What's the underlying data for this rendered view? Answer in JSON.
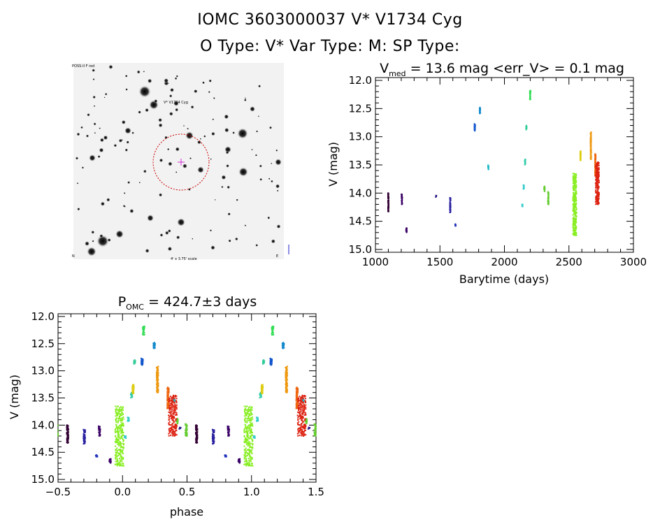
{
  "header": {
    "title_line1": "IOMC 3603000037    V* V1734 Cyg",
    "title_line2": "O Type: V*   Var Type: M:   SP Type:"
  },
  "finder_chart": {
    "label_top_left": "POSS-II F red",
    "label_target": "V* V1734 Cyg",
    "label_bottom_left": "N",
    "label_bottom_center": "4' x 3.75' scale",
    "label_bottom_right": "E",
    "marker_color": "#cc0000",
    "label_color": "#2020cc"
  },
  "chart_data": [
    {
      "type": "scatter",
      "id": "light_curve",
      "title_main": "V",
      "title_sub": "med",
      "title_rest": " = 13.6 mag <err_V> = 0.1 mag",
      "xlabel": "Barytime (days)",
      "ylabel": "V (mag)",
      "xlim": [
        1000,
        3000
      ],
      "ylim": [
        15.05,
        11.95
      ],
      "xticks": [
        "1000",
        "1500",
        "2000",
        "2500",
        "3000"
      ],
      "yticks": [
        "12.0",
        "12.5",
        "13.0",
        "13.5",
        "14.0",
        "14.5",
        "15.0"
      ],
      "clusters": [
        {
          "x": 1100,
          "y_min": 14.0,
          "y_max": 14.33,
          "color": "#330033"
        },
        {
          "x": 1205,
          "y_min": 14.02,
          "y_max": 14.2,
          "color": "#3a0066"
        },
        {
          "x": 1240,
          "y_min": 14.62,
          "y_max": 14.7,
          "color": "#3a0066"
        },
        {
          "x": 1470,
          "y_min": 14.04,
          "y_max": 14.07,
          "color": "#2a1a8a"
        },
        {
          "x": 1580,
          "y_min": 14.08,
          "y_max": 14.35,
          "color": "#2a22a0"
        },
        {
          "x": 1620,
          "y_min": 14.55,
          "y_max": 14.59,
          "color": "#2233bb"
        },
        {
          "x": 1770,
          "y_min": 12.77,
          "y_max": 12.9,
          "color": "#1155cc"
        },
        {
          "x": 1810,
          "y_min": 12.48,
          "y_max": 12.6,
          "color": "#1188cc"
        },
        {
          "x": 1875,
          "y_min": 13.5,
          "y_max": 13.58,
          "color": "#22bbcc"
        },
        {
          "x": 2140,
          "y_min": 14.2,
          "y_max": 14.25,
          "color": "#33cccc"
        },
        {
          "x": 2150,
          "y_min": 13.85,
          "y_max": 13.93,
          "color": "#33cccc"
        },
        {
          "x": 2160,
          "y_min": 13.4,
          "y_max": 13.5,
          "color": "#33ccaa"
        },
        {
          "x": 2170,
          "y_min": 12.8,
          "y_max": 12.88,
          "color": "#33cc99"
        },
        {
          "x": 2200,
          "y_min": 12.18,
          "y_max": 12.35,
          "color": "#33dd55"
        },
        {
          "x": 2310,
          "y_min": 13.88,
          "y_max": 13.98,
          "color": "#66cc33"
        },
        {
          "x": 2340,
          "y_min": 13.98,
          "y_max": 14.2,
          "color": "#66cc33"
        },
        {
          "x": 2545,
          "y_min": 13.65,
          "y_max": 14.75,
          "color": "#88ee22"
        },
        {
          "x": 2590,
          "y_min": 13.25,
          "y_max": 13.42,
          "color": "#ddcc11"
        },
        {
          "x": 2670,
          "y_min": 12.92,
          "y_max": 13.4,
          "color": "#ee9911"
        },
        {
          "x": 2705,
          "y_min": 13.3,
          "y_max": 13.7,
          "color": "#ee6611"
        },
        {
          "x": 2720,
          "y_min": 13.45,
          "y_max": 14.2,
          "color": "#dd2211"
        }
      ]
    },
    {
      "type": "scatter",
      "id": "phased_curve",
      "title_main": "P",
      "title_sub": "OMC",
      "title_rest": " = 424.7±3 days",
      "xlabel": "phase",
      "ylabel": "V (mag)",
      "xlim": [
        -0.5,
        1.5
      ],
      "ylim": [
        15.05,
        11.95
      ],
      "xticks": [
        "−0.5",
        "0.0",
        "0.5",
        "1.0",
        "1.5"
      ],
      "yticks": [
        "12.0",
        "12.5",
        "13.0",
        "13.5",
        "14.0",
        "14.5",
        "15.0"
      ],
      "period_days": 424.7,
      "epoch_days": 2555
    }
  ]
}
